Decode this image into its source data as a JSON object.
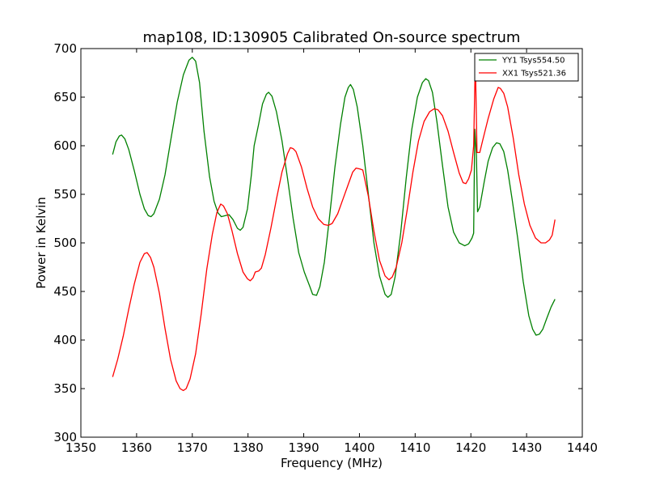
{
  "chart_data": {
    "type": "line",
    "title": "map108, ID:130905 Calibrated On-source spectrum",
    "xlabel": "Frequency (MHz)",
    "ylabel": "Power in Kelvin",
    "xlim": [
      1350,
      1440
    ],
    "ylim": [
      300,
      700
    ],
    "xticks": [
      1350,
      1360,
      1370,
      1380,
      1390,
      1400,
      1410,
      1420,
      1430,
      1440
    ],
    "yticks": [
      300,
      350,
      400,
      450,
      500,
      550,
      600,
      650,
      700
    ],
    "grid": false,
    "legend_position": "top-right",
    "series": [
      {
        "name": "YY1 Tsys554.50",
        "color": "#008000",
        "points": [
          [
            1355.7,
            591
          ],
          [
            1356.3,
            604
          ],
          [
            1356.9,
            610
          ],
          [
            1357.3,
            611
          ],
          [
            1357.9,
            607
          ],
          [
            1358.6,
            596
          ],
          [
            1359.6,
            574
          ],
          [
            1360.6,
            550
          ],
          [
            1361.4,
            535
          ],
          [
            1362.1,
            528
          ],
          [
            1362.6,
            527
          ],
          [
            1363.1,
            530
          ],
          [
            1364.1,
            545
          ],
          [
            1365.1,
            570
          ],
          [
            1366.2,
            608
          ],
          [
            1367.3,
            645
          ],
          [
            1368.4,
            673
          ],
          [
            1369.4,
            688
          ],
          [
            1370.0,
            691
          ],
          [
            1370.6,
            687
          ],
          [
            1371.3,
            665
          ],
          [
            1372.1,
            615
          ],
          [
            1373.1,
            568
          ],
          [
            1373.9,
            543
          ],
          [
            1374.6,
            531
          ],
          [
            1375.2,
            527
          ],
          [
            1375.9,
            528
          ],
          [
            1376.6,
            529
          ],
          [
            1377.3,
            524
          ],
          [
            1378.1,
            515
          ],
          [
            1378.6,
            513
          ],
          [
            1379.1,
            516
          ],
          [
            1379.9,
            535
          ],
          [
            1380.6,
            570
          ],
          [
            1381.1,
            600
          ],
          [
            1381.9,
            622
          ],
          [
            1382.6,
            643
          ],
          [
            1383.3,
            653
          ],
          [
            1383.7,
            655
          ],
          [
            1384.3,
            651
          ],
          [
            1385.1,
            635
          ],
          [
            1386.1,
            605
          ],
          [
            1387.1,
            566
          ],
          [
            1388.1,
            525
          ],
          [
            1389.1,
            490
          ],
          [
            1390.1,
            470
          ],
          [
            1391.1,
            455
          ],
          [
            1391.6,
            447
          ],
          [
            1392.3,
            446
          ],
          [
            1392.9,
            455
          ],
          [
            1393.7,
            480
          ],
          [
            1394.6,
            525
          ],
          [
            1395.6,
            578
          ],
          [
            1396.6,
            622
          ],
          [
            1397.4,
            650
          ],
          [
            1398.0,
            660
          ],
          [
            1398.4,
            663
          ],
          [
            1398.9,
            658
          ],
          [
            1399.6,
            640
          ],
          [
            1400.6,
            600
          ],
          [
            1401.6,
            550
          ],
          [
            1402.6,
            500
          ],
          [
            1403.6,
            466
          ],
          [
            1404.6,
            447
          ],
          [
            1405.1,
            444
          ],
          [
            1405.7,
            447
          ],
          [
            1406.4,
            465
          ],
          [
            1407.4,
            510
          ],
          [
            1408.4,
            567
          ],
          [
            1409.4,
            617
          ],
          [
            1410.4,
            650
          ],
          [
            1411.3,
            665
          ],
          [
            1411.9,
            669
          ],
          [
            1412.4,
            667
          ],
          [
            1413.1,
            655
          ],
          [
            1413.9,
            625
          ],
          [
            1414.9,
            580
          ],
          [
            1415.9,
            537
          ],
          [
            1416.9,
            511
          ],
          [
            1417.9,
            500
          ],
          [
            1418.9,
            497
          ],
          [
            1419.6,
            499
          ],
          [
            1420.2,
            505
          ],
          [
            1420.5,
            510
          ],
          [
            1420.7,
            617
          ],
          [
            1421.0,
            590
          ],
          [
            1421.2,
            532
          ],
          [
            1421.6,
            537
          ],
          [
            1422.4,
            563
          ],
          [
            1423.1,
            584
          ],
          [
            1423.9,
            598
          ],
          [
            1424.6,
            603
          ],
          [
            1425.2,
            602
          ],
          [
            1425.9,
            594
          ],
          [
            1426.6,
            575
          ],
          [
            1427.4,
            545
          ],
          [
            1428.4,
            505
          ],
          [
            1429.4,
            460
          ],
          [
            1430.4,
            425
          ],
          [
            1431.1,
            411
          ],
          [
            1431.7,
            405
          ],
          [
            1432.3,
            406
          ],
          [
            1432.9,
            411
          ],
          [
            1433.6,
            422
          ],
          [
            1434.4,
            434
          ],
          [
            1435.1,
            442
          ]
        ]
      },
      {
        "name": "XX1 Tsys521.36",
        "color": "#ff0000",
        "points": [
          [
            1355.7,
            362
          ],
          [
            1356.6,
            380
          ],
          [
            1357.6,
            404
          ],
          [
            1358.6,
            432
          ],
          [
            1359.6,
            458
          ],
          [
            1360.6,
            480
          ],
          [
            1361.4,
            489
          ],
          [
            1361.9,
            490
          ],
          [
            1362.5,
            485
          ],
          [
            1363.1,
            475
          ],
          [
            1364.1,
            448
          ],
          [
            1365.1,
            412
          ],
          [
            1366.1,
            380
          ],
          [
            1367.1,
            358
          ],
          [
            1367.8,
            350
          ],
          [
            1368.4,
            348
          ],
          [
            1368.9,
            350
          ],
          [
            1369.6,
            360
          ],
          [
            1370.6,
            386
          ],
          [
            1371.6,
            427
          ],
          [
            1372.6,
            473
          ],
          [
            1373.6,
            509
          ],
          [
            1374.4,
            531
          ],
          [
            1375.1,
            540
          ],
          [
            1375.6,
            538
          ],
          [
            1376.3,
            530
          ],
          [
            1377.1,
            513
          ],
          [
            1378.1,
            489
          ],
          [
            1379.1,
            470
          ],
          [
            1379.9,
            463
          ],
          [
            1380.4,
            461
          ],
          [
            1380.9,
            464
          ],
          [
            1381.3,
            470
          ],
          [
            1381.9,
            471
          ],
          [
            1382.4,
            474
          ],
          [
            1383.1,
            488
          ],
          [
            1384.1,
            515
          ],
          [
            1385.1,
            545
          ],
          [
            1386.1,
            573
          ],
          [
            1387.1,
            592
          ],
          [
            1387.6,
            598
          ],
          [
            1388.1,
            597
          ],
          [
            1388.6,
            594
          ],
          [
            1389.6,
            578
          ],
          [
            1390.6,
            556
          ],
          [
            1391.6,
            537
          ],
          [
            1392.6,
            525
          ],
          [
            1393.6,
            519
          ],
          [
            1394.4,
            518
          ],
          [
            1395.1,
            520
          ],
          [
            1396.1,
            530
          ],
          [
            1397.1,
            546
          ],
          [
            1398.1,
            562
          ],
          [
            1398.8,
            573
          ],
          [
            1399.4,
            577
          ],
          [
            1400.1,
            576
          ],
          [
            1400.6,
            575
          ],
          [
            1401.6,
            548
          ],
          [
            1402.6,
            512
          ],
          [
            1403.6,
            482
          ],
          [
            1404.6,
            466
          ],
          [
            1405.3,
            462
          ],
          [
            1405.9,
            465
          ],
          [
            1406.6,
            475
          ],
          [
            1407.6,
            500
          ],
          [
            1408.6,
            535
          ],
          [
            1409.6,
            573
          ],
          [
            1410.6,
            605
          ],
          [
            1411.6,
            625
          ],
          [
            1412.6,
            635
          ],
          [
            1413.4,
            638
          ],
          [
            1414.1,
            637
          ],
          [
            1414.9,
            631
          ],
          [
            1415.9,
            615
          ],
          [
            1416.9,
            593
          ],
          [
            1417.9,
            572
          ],
          [
            1418.6,
            562
          ],
          [
            1419.1,
            561
          ],
          [
            1419.6,
            566
          ],
          [
            1420.1,
            575
          ],
          [
            1420.5,
            600
          ],
          [
            1420.8,
            690
          ],
          [
            1421.1,
            593
          ],
          [
            1421.6,
            593
          ],
          [
            1422.1,
            605
          ],
          [
            1423.1,
            628
          ],
          [
            1424.1,
            648
          ],
          [
            1424.9,
            660
          ],
          [
            1425.3,
            659
          ],
          [
            1425.9,
            654
          ],
          [
            1426.6,
            640
          ],
          [
            1427.6,
            608
          ],
          [
            1428.6,
            570
          ],
          [
            1429.6,
            540
          ],
          [
            1430.6,
            518
          ],
          [
            1431.6,
            505
          ],
          [
            1432.6,
            500
          ],
          [
            1433.4,
            500
          ],
          [
            1434.1,
            503
          ],
          [
            1434.6,
            508
          ],
          [
            1435.1,
            524
          ]
        ]
      }
    ]
  }
}
